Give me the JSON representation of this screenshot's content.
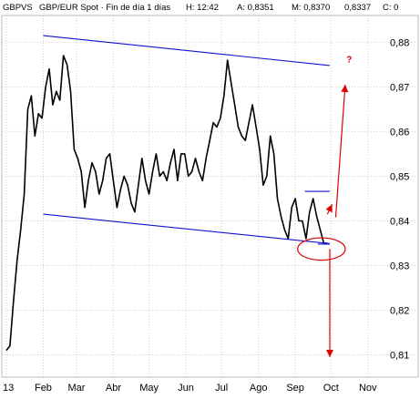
{
  "header": {
    "symbol": "GBPVS",
    "description": "GBP/EUR Spot · Fin de día 1 días",
    "high": "H: 12:42",
    "ask": "A: 0,8351",
    "mid": "M: 0,8370",
    "close": "0,8337",
    "c": "C: 0"
  },
  "chart_data": {
    "type": "line",
    "title": "",
    "xlabel": "",
    "ylabel": "",
    "ylim": [
      0.805,
      0.886
    ],
    "y_ticks": [
      0.81,
      0.82,
      0.83,
      0.84,
      0.85,
      0.86,
      0.87,
      0.88
    ],
    "y_tick_labels": [
      "0,81",
      "0,82",
      "0,83",
      "0,84",
      "0,85",
      "0,86",
      "0,87",
      "0,88"
    ],
    "x_tick_labels": [
      "13",
      "Feb",
      "Mar",
      "Abr",
      "May",
      "Jun",
      "Jul",
      "Ago",
      "Sep",
      "Oct",
      "Nov"
    ],
    "x_tick_days": [
      0,
      31,
      59,
      90,
      120,
      151,
      181,
      212,
      243,
      273,
      304
    ],
    "grid": true,
    "series": [
      {
        "color": "#000000",
        "x": [
          0,
          3,
          6,
          9,
          12,
          15,
          18,
          21,
          24,
          27,
          30,
          33,
          36,
          39,
          42,
          45,
          48,
          51,
          54,
          57,
          60,
          63,
          66,
          69,
          72,
          75,
          78,
          81,
          84,
          87,
          90,
          93,
          96,
          99,
          102,
          105,
          108,
          111,
          114,
          117,
          120,
          123,
          126,
          129,
          132,
          135,
          138,
          141,
          144,
          147,
          150,
          153,
          156,
          159,
          162,
          165,
          168,
          171,
          174,
          177,
          180,
          183,
          186,
          189,
          192,
          195,
          198,
          201,
          204,
          207,
          210,
          213,
          216,
          219,
          222,
          225,
          228,
          231,
          234,
          237,
          240,
          243,
          246,
          249,
          252,
          255,
          258,
          261,
          264,
          267,
          270
        ],
        "values": [
          0.811,
          0.812,
          0.822,
          0.831,
          0.838,
          0.846,
          0.865,
          0.868,
          0.859,
          0.864,
          0.863,
          0.87,
          0.874,
          0.866,
          0.869,
          0.867,
          0.877,
          0.875,
          0.869,
          0.856,
          0.854,
          0.851,
          0.843,
          0.849,
          0.853,
          0.851,
          0.846,
          0.849,
          0.854,
          0.855,
          0.849,
          0.843,
          0.847,
          0.85,
          0.848,
          0.844,
          0.842,
          0.848,
          0.854,
          0.849,
          0.846,
          0.851,
          0.855,
          0.85,
          0.851,
          0.849,
          0.853,
          0.856,
          0.849,
          0.855,
          0.855,
          0.85,
          0.851,
          0.854,
          0.851,
          0.849,
          0.854,
          0.858,
          0.862,
          0.861,
          0.863,
          0.868,
          0.876,
          0.871,
          0.866,
          0.861,
          0.859,
          0.858,
          0.862,
          0.866,
          0.861,
          0.856,
          0.848,
          0.85,
          0.859,
          0.855,
          0.845,
          0.841,
          0.838,
          0.836,
          0.843,
          0.845,
          0.84,
          0.84,
          0.836,
          0.842,
          0.845,
          0.841,
          0.838,
          0.835,
          0.835
        ]
      }
    ],
    "annotations": [
      {
        "type": "trendline",
        "color": "#1111cc",
        "points": [
          [
            31,
            0.8815
          ],
          [
            272,
            0.8748
          ]
        ]
      },
      {
        "type": "trendline",
        "color": "#1111cc",
        "points": [
          [
            31,
            0.8415
          ],
          [
            272,
            0.8349
          ]
        ]
      },
      {
        "type": "trendline",
        "color": "#1111cc",
        "points": [
          [
            251,
            0.8466
          ],
          [
            272,
            0.8466
          ]
        ]
      },
      {
        "type": "trendline",
        "color": "#1111cc",
        "points": [
          [
            262,
            0.8348
          ],
          [
            272,
            0.8348
          ]
        ]
      },
      {
        "type": "ellipse",
        "color": "#dd0000",
        "center": [
          265,
          0.8337
        ],
        "radii_days_price": [
          20,
          0.0025
        ]
      },
      {
        "type": "arrow",
        "color": "#dd0000",
        "from": [
          272,
          0.8337
        ],
        "to": [
          272,
          0.8095
        ]
      },
      {
        "type": "arrow",
        "color": "#dd0000",
        "from": [
          277,
          0.8408
        ],
        "to": [
          285,
          0.8705
        ]
      },
      {
        "type": "arrow",
        "color": "#dd0000",
        "from": [
          270,
          0.8415
        ],
        "to": [
          274,
          0.8437
        ]
      },
      {
        "type": "text",
        "color": "#dd0000",
        "text": "?",
        "at": [
          286,
          0.8755
        ]
      }
    ]
  }
}
